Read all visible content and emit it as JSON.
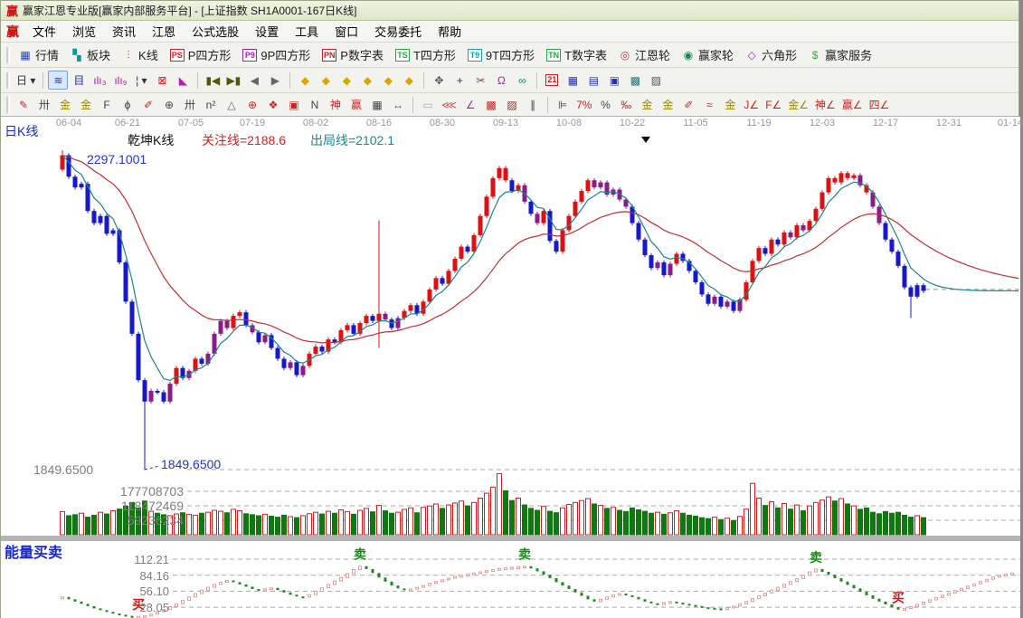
{
  "window": {
    "title": "赢家江恩专业版[赢家内部服务平台] - [上证指数  SH1A0001-167日K线]",
    "logo": "赢"
  },
  "menu": {
    "logo": "赢",
    "items": [
      "文件",
      "浏览",
      "资讯",
      "江恩",
      "公式选股",
      "设置",
      "工具",
      "窗口",
      "交易委托",
      "帮助"
    ]
  },
  "toolbar_main": {
    "items": [
      {
        "icon": "▦",
        "icon_color": "#2244bb",
        "label": "行情",
        "name": "quotes"
      },
      {
        "icon": "▚",
        "icon_color": "#119999",
        "label": "板块",
        "name": "sectors"
      },
      {
        "icon": "⫶",
        "icon_color": "#cc2222",
        "label": "K线",
        "name": "kline"
      },
      {
        "icon": "PS",
        "icon_color": "#cc2222",
        "boxed": true,
        "label": "P四方形",
        "name": "p-square"
      },
      {
        "icon": "P9",
        "icon_color": "#aa22aa",
        "boxed": true,
        "label": "9P四方形",
        "name": "9p-square"
      },
      {
        "icon": "PN",
        "icon_color": "#bb2222",
        "boxed": true,
        "label": "P数字表",
        "name": "p-number-table"
      },
      {
        "icon": "TS",
        "icon_color": "#22aa44",
        "boxed": true,
        "label": "T四方形",
        "name": "t-square"
      },
      {
        "icon": "T9",
        "icon_color": "#11aaaa",
        "boxed": true,
        "label": "9T四方形",
        "name": "9t-square"
      },
      {
        "icon": "TN",
        "icon_color": "#22aa44",
        "boxed": true,
        "label": "T数字表",
        "name": "t-number-table"
      },
      {
        "icon": "◎",
        "icon_color": "#cc3333",
        "label": "江恩轮",
        "name": "gann-wheel"
      },
      {
        "icon": "◉",
        "icon_color": "#118855",
        "label": "赢家轮",
        "name": "winner-wheel"
      },
      {
        "icon": "◇",
        "icon_color": "#8833aa",
        "label": "六角形",
        "name": "hexagon"
      },
      {
        "icon": "$",
        "icon_color": "#33aa33",
        "label": "赢家服务",
        "name": "winner-service"
      }
    ]
  },
  "toolbar_view": {
    "items": [
      {
        "g": "日 ▾",
        "n": "period-selector"
      },
      {
        "sep": true
      },
      {
        "g": "≋",
        "n": "zigzag-view",
        "c": "#2233bb",
        "sel": true
      },
      {
        "g": "目",
        "n": "detail-list",
        "c": "#2233bb"
      },
      {
        "g": "ılı₃",
        "n": "bars-3",
        "c": "#aa22aa"
      },
      {
        "g": "ılı₉",
        "n": "bars-9",
        "c": "#aa22aa"
      },
      {
        "g": "¦ ▾",
        "n": "candle-style",
        "c": "#333333"
      },
      {
        "g": "⊠",
        "n": "red-frame",
        "c": "#cc2222"
      },
      {
        "g": "◣",
        "n": "color-arrow",
        "c": "#aa22aa"
      },
      {
        "sep": true
      },
      {
        "g": "▮◀",
        "n": "go-first",
        "c": "#555511"
      },
      {
        "g": "▶▮",
        "n": "go-last",
        "c": "#555511"
      },
      {
        "g": "◀",
        "n": "step-back",
        "c": "#666666"
      },
      {
        "g": "▶",
        "n": "step-forward",
        "c": "#666666"
      },
      {
        "sep": true
      },
      {
        "g": "◆",
        "n": "diamond-left",
        "c": "#d4aa00"
      },
      {
        "g": "◆",
        "n": "diamond-right",
        "c": "#d4aa00"
      },
      {
        "g": "◆",
        "n": "diamond-updown",
        "c": "#d4aa00"
      },
      {
        "g": "◆",
        "n": "diamond-shrink",
        "c": "#d4aa00"
      },
      {
        "g": "◆",
        "n": "diamond-expand",
        "c": "#d4aa00"
      },
      {
        "g": "◆",
        "n": "diamond-move",
        "c": "#d4aa00"
      },
      {
        "sep": true
      },
      {
        "g": "✥",
        "n": "hand-tool",
        "c": "#555555"
      },
      {
        "g": "+",
        "n": "crosshair-tool",
        "c": "#333333"
      },
      {
        "g": "✂",
        "n": "cut-tool",
        "c": "#884444"
      },
      {
        "g": "Ω",
        "n": "measure-tool",
        "c": "#aa22aa"
      },
      {
        "g": "∞",
        "n": "binoculars-tool",
        "c": "#227777"
      },
      {
        "sep": true
      },
      {
        "g": "21",
        "n": "calendar",
        "box": true
      },
      {
        "g": "▦",
        "n": "calculator",
        "c": "#2233bb"
      },
      {
        "g": "▤",
        "n": "notes",
        "c": "#2233bb"
      },
      {
        "g": "▣",
        "n": "save-disk",
        "c": "#2233bb"
      },
      {
        "g": "▩",
        "n": "save-web",
        "c": "#227777"
      },
      {
        "g": "▨",
        "n": "export",
        "c": "#555555"
      }
    ]
  },
  "toolbar_draw": {
    "items": [
      {
        "g": "✎",
        "n": "pencil",
        "c": "#aa3333"
      },
      {
        "g": "卅",
        "n": "gann-grid",
        "c": "#444444"
      },
      {
        "g": "金",
        "n": "gold-line-1",
        "c": "#998800"
      },
      {
        "g": "金",
        "n": "gold-line-2",
        "c": "#998800"
      },
      {
        "g": "F",
        "n": "fibonacci",
        "c": "#444444"
      },
      {
        "g": "ϕ",
        "n": "spiral",
        "c": "#444444"
      },
      {
        "g": "✐",
        "n": "pencil-2",
        "c": "#aa3333"
      },
      {
        "g": "⊕",
        "n": "circle-tool",
        "c": "#444444"
      },
      {
        "g": "卅",
        "n": "grid-2",
        "c": "#444444"
      },
      {
        "g": "n²",
        "n": "square-numbers",
        "c": "#444444"
      },
      {
        "g": "△",
        "n": "angle-mirror",
        "c": "#666666"
      },
      {
        "g": "⊕",
        "n": "target",
        "c": "#cc2222"
      },
      {
        "g": "❖",
        "n": "star-grid",
        "c": "#cc2222"
      },
      {
        "g": "▣",
        "n": "box-grid",
        "c": "#cc2222"
      },
      {
        "g": "Ν",
        "n": "n-wave",
        "c": "#444444"
      },
      {
        "g": "神",
        "n": "shen-tool",
        "c": "#cc2222"
      },
      {
        "g": "赢",
        "n": "win-tool",
        "c": "#cc2222"
      },
      {
        "g": "▦",
        "n": "ruler-grid",
        "c": "#444444"
      },
      {
        "g": "↔",
        "n": "width-measure",
        "c": "#444444"
      },
      {
        "sep": true
      },
      {
        "g": "▭",
        "n": "window-tool",
        "c": "#aaaaaa"
      },
      {
        "g": "⋘",
        "n": "fan-lines",
        "c": "#cc5555"
      },
      {
        "g": "∠",
        "n": "wedge",
        "c": "#aa22aa"
      },
      {
        "g": "▩",
        "n": "shade-grid",
        "c": "#cc2222"
      },
      {
        "g": "▨",
        "n": "hatch-grid",
        "c": "#883333"
      },
      {
        "g": "∥",
        "n": "parallel-lines",
        "c": "#444444"
      },
      {
        "sep": true
      },
      {
        "g": "⊫",
        "n": "levels",
        "c": "#444444"
      },
      {
        "g": "7%",
        "n": "percent-7",
        "c": "#cc2222"
      },
      {
        "g": "%",
        "n": "percent",
        "c": "#444444"
      },
      {
        "g": "‰",
        "n": "permille",
        "c": "#cc2222"
      },
      {
        "g": "金",
        "n": "gold-circle",
        "c": "#998800"
      },
      {
        "g": "金",
        "n": "gold-level",
        "c": "#998800"
      },
      {
        "g": "✐",
        "n": "brush",
        "c": "#aa3333"
      },
      {
        "g": "≈",
        "n": "wave-levels",
        "c": "#cc2222"
      },
      {
        "g": "金",
        "n": "gold-angle",
        "c": "#998800"
      },
      {
        "g": "J∠",
        "n": "j-angle",
        "c": "#cc2222"
      },
      {
        "g": "F∠",
        "n": "f-angle",
        "c": "#cc2222"
      },
      {
        "g": "金∠",
        "n": "gold-angle-2",
        "c": "#998800"
      },
      {
        "g": "神∠",
        "n": "shen-angle",
        "c": "#cc2222"
      },
      {
        "g": "赢∠",
        "n": "win-angle",
        "c": "#cc2222"
      },
      {
        "g": "四∠",
        "n": "four-angle",
        "c": "#cc2222"
      }
    ]
  },
  "chart_header": {
    "panel_label": "日K线",
    "series_label": "乾坤K线",
    "attention": "关注线=2188.6",
    "exit": "出局线=2102.1",
    "high_annotation": "2297.1001",
    "low_annotation": "1849.6500"
  },
  "axis": {
    "price_left": "1849.6500",
    "volume": [
      "177708703",
      "118472469",
      "59236234"
    ],
    "indicator_label": "能量买卖",
    "indicator_ticks": [
      "112.21",
      "84.16",
      "56.10",
      "28.05"
    ]
  },
  "chart_data": {
    "type": "candlestick",
    "title": "上证指数 SH1A0001-167 日K线 (乾坤K线)",
    "dates": [
      "06-04",
      "06-21",
      "07-05",
      "07-19",
      "08-02",
      "08-16",
      "08-30",
      "09-13",
      "10-08",
      "10-22",
      "11-05",
      "11-19",
      "12-03",
      "12-17",
      "12-31",
      "01-14"
    ],
    "date_tick_x": [
      75,
      140,
      210,
      278,
      348,
      418,
      488,
      558,
      628,
      698,
      768,
      838,
      908,
      978,
      1048,
      1116
    ],
    "price_axis": {
      "low_marked": 1849.65,
      "high_marked": 2297.1001,
      "attention_line": 2188.6,
      "exit_line": 2102.1
    },
    "volume_axis_values": [
      177708703,
      118472469,
      59236234
    ],
    "indicator_axis_values": [
      112.21,
      84.16,
      56.1,
      28.05
    ],
    "open_first": 2270,
    "closes": [
      2290,
      2260,
      2245,
      2250,
      2212,
      2195,
      2205,
      2180,
      2185,
      2140,
      2085,
      2040,
      1975,
      1945,
      1960,
      1958,
      1945,
      1970,
      1992,
      1978,
      1988,
      2005,
      1998,
      2012,
      2040,
      2058,
      2048,
      2065,
      2070,
      2052,
      2042,
      2028,
      2038,
      2020,
      2005,
      1992,
      2000,
      1982,
      1995,
      2012,
      2022,
      2015,
      2032,
      2028,
      2045,
      2052,
      2040,
      2055,
      2065,
      2058,
      2068,
      2060,
      2048,
      2062,
      2072,
      2080,
      2068,
      2085,
      2102,
      2118,
      2110,
      2128,
      2145,
      2162,
      2155,
      2178,
      2205,
      2232,
      2258,
      2272,
      2255,
      2240,
      2248,
      2225,
      2208,
      2195,
      2212,
      2170,
      2155,
      2185,
      2205,
      2225,
      2240,
      2255,
      2245,
      2252,
      2235,
      2242,
      2228,
      2218,
      2195,
      2172,
      2150,
      2132,
      2140,
      2122,
      2138,
      2152,
      2142,
      2128,
      2112,
      2095,
      2082,
      2092,
      2078,
      2085,
      2072,
      2088,
      2112,
      2142,
      2160,
      2152,
      2172,
      2165,
      2182,
      2175,
      2192,
      2185,
      2198,
      2215,
      2238,
      2258,
      2252,
      2265,
      2258,
      2262,
      2248,
      2238,
      2218,
      2195,
      2172,
      2155,
      2135,
      2105,
      2092,
      2108,
      2100
    ],
    "overrides": {
      "0": {
        "high": 2297.1
      },
      "13": {
        "low": 1849.65
      },
      "50": {
        "high": 2198.9,
        "low": 2020
      },
      "134": {
        "low": 2062
      }
    },
    "colors": "RBBBBBBBBBBBBBPBBPRBPRBPPPPRRBPBPBBBPBPRRBRBRRBRRBRPBPRRBRRRBRRRBRRRRRRBRPBPRBBRRRRRPPPPPPBBBBPBPRBBBBBPBPBPRRRBRBRPRPRRRRRRRRPRPPBBBBBBB",
    "color_map": {
      "R": "#dd1111",
      "B": "#1717cc",
      "P": "#8a1c8a"
    },
    "volumes_millions": [
      95,
      78,
      82,
      88,
      72,
      80,
      92,
      85,
      98,
      105,
      118,
      132,
      110,
      138,
      96,
      88,
      82,
      78,
      85,
      90,
      84,
      80,
      88,
      92,
      100,
      96,
      90,
      104,
      98,
      86,
      82,
      78,
      84,
      76,
      72,
      80,
      74,
      70,
      78,
      86,
      92,
      85,
      96,
      88,
      102,
      95,
      84,
      100,
      108,
      94,
      120,
      98,
      88,
      92,
      104,
      110,
      90,
      112,
      118,
      126,
      108,
      122,
      130,
      138,
      118,
      132,
      150,
      170,
      195,
      250,
      180,
      140,
      150,
      122,
      108,
      100,
      116,
      96,
      90,
      110,
      124,
      132,
      140,
      148,
      126,
      120,
      108,
      112,
      100,
      95,
      110,
      102,
      96,
      88,
      92,
      84,
      90,
      98,
      88,
      80,
      76,
      70,
      66,
      72,
      62,
      68,
      58,
      75,
      105,
      210,
      150,
      120,
      135,
      110,
      128,
      105,
      122,
      98,
      118,
      132,
      142,
      155,
      138,
      148,
      126,
      118,
      104,
      110,
      92,
      86,
      95,
      88,
      92,
      80,
      72,
      78,
      70
    ],
    "volume_colors": {
      "up": "#cc2222",
      "down": "#117711"
    },
    "ma": {
      "fast": {
        "color": "#1d8585",
        "alpha": 0.32
      },
      "slow": {
        "color": "#c03030",
        "alpha": 0.085
      },
      "extension_close": 2100,
      "extension_steps": 15
    },
    "indicator": {
      "name": "能量买卖",
      "values": [
        46,
        42,
        38,
        34,
        30,
        26,
        23,
        20,
        17,
        15,
        13,
        12,
        12,
        13,
        16,
        20,
        24,
        29,
        34,
        40,
        46,
        52,
        58,
        63,
        68,
        72,
        75,
        72,
        68,
        64,
        60,
        58,
        60,
        62,
        58,
        54,
        50,
        47,
        46,
        50,
        56,
        62,
        68,
        74,
        80,
        87,
        94,
        100,
        95,
        88,
        80,
        73,
        66,
        61,
        58,
        60,
        63,
        66,
        70,
        73,
        76,
        79,
        82,
        84,
        86,
        88,
        90,
        92,
        94,
        96,
        97,
        98,
        99,
        100,
        96,
        91,
        85,
        79,
        72,
        66,
        60,
        54,
        48,
        42,
        38,
        42,
        46,
        50,
        52,
        49,
        46,
        42,
        38,
        35,
        33,
        36,
        38,
        36,
        34,
        32,
        30,
        28,
        27,
        26,
        25,
        27,
        30,
        34,
        38,
        43,
        48,
        53,
        58,
        63,
        68,
        73,
        78,
        84,
        90,
        95,
        90,
        85,
        79,
        73,
        67,
        61,
        55,
        49,
        43,
        38,
        33,
        28,
        24,
        26,
        29,
        33,
        37
      ],
      "extension": [
        41,
        45,
        49,
        53,
        57,
        61,
        65,
        69,
        73,
        77,
        81,
        84,
        86,
        88
      ],
      "up_color": "#e89a9a",
      "down_color": "#1a8a1a",
      "markers": [
        {
          "index": 12,
          "text": "买",
          "color": "#dd1111"
        },
        {
          "index": 47,
          "text": "卖",
          "color": "#1a8a1a"
        },
        {
          "index": 73,
          "text": "卖",
          "color": "#1a8a1a"
        },
        {
          "index": 119,
          "text": "卖",
          "color": "#1a8a1a"
        },
        {
          "index": 132,
          "text": "买",
          "color": "#dd1111"
        }
      ]
    }
  }
}
